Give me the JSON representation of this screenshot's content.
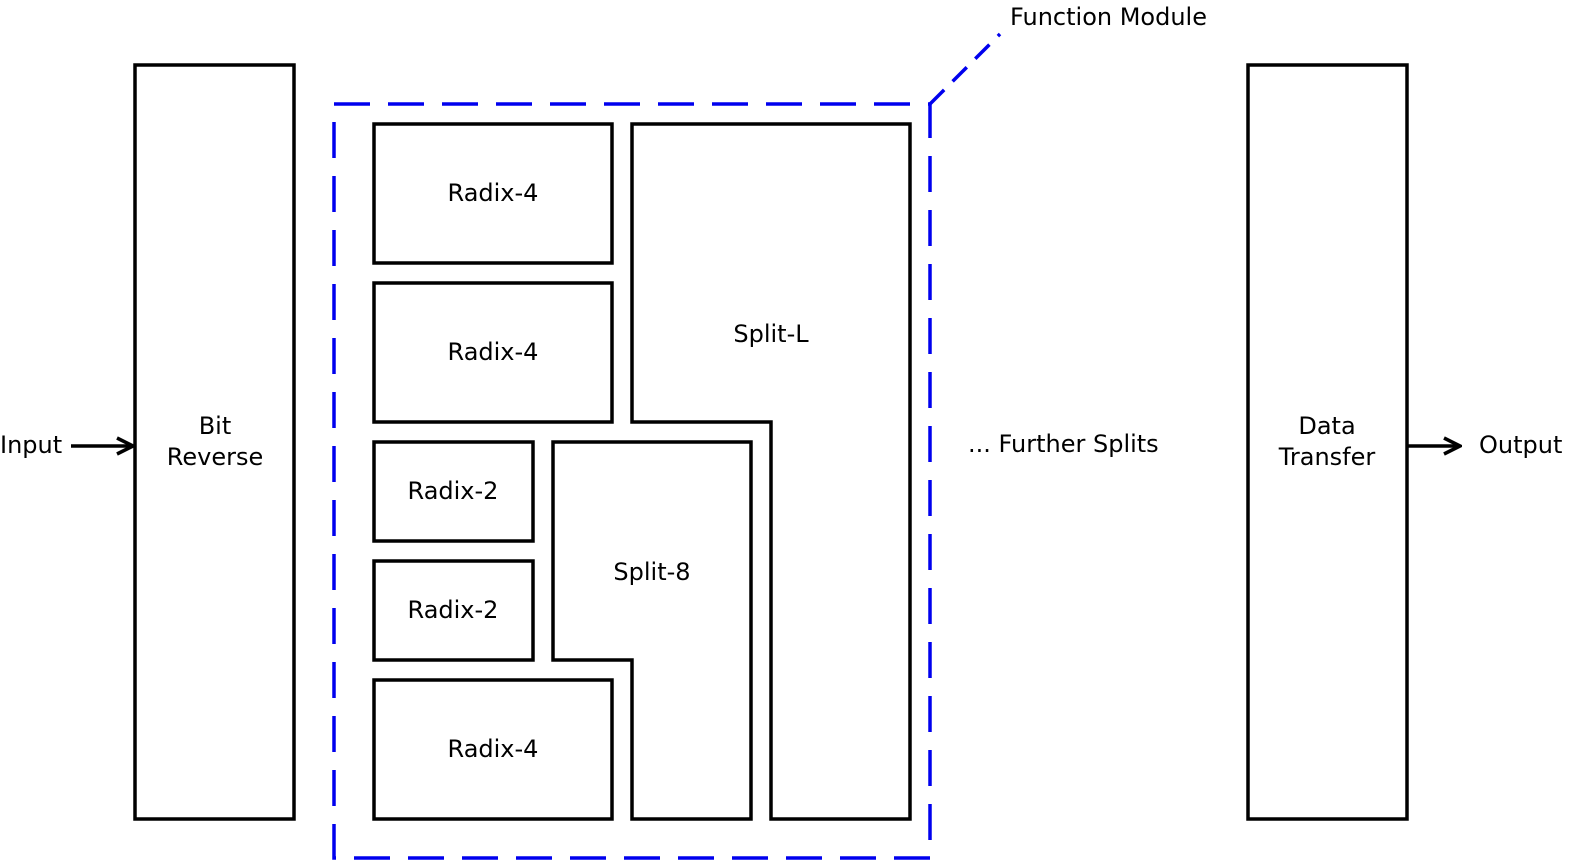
{
  "colors": {
    "stroke": "#000000",
    "module_border": "#0000ee",
    "background": "#ffffff"
  },
  "labels": {
    "input": "Input",
    "output": "Output",
    "bit_reverse_line1": "Bit",
    "bit_reverse_line2": "Reverse",
    "data_transfer_line1": "Data",
    "data_transfer_line2": "Transfer",
    "function_module": "Function Module",
    "further_splits": "... Further Splits",
    "radix4": "Radix-4",
    "radix2": "Radix-2",
    "split_l": "Split-L",
    "split_8": "Split-8"
  }
}
